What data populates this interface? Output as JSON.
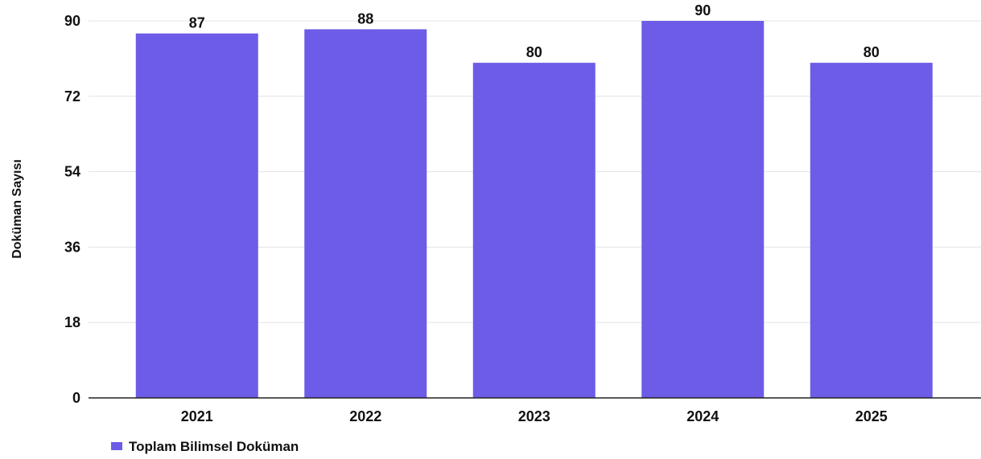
{
  "chart_data": {
    "type": "bar",
    "title": "",
    "xlabel": "",
    "ylabel": "Doküman Sayısı",
    "categories": [
      "2021",
      "2022",
      "2023",
      "2024",
      "2025"
    ],
    "series": [
      {
        "name": "Toplam Bilimsel Doküman",
        "values": [
          87,
          88,
          80,
          90,
          80
        ],
        "color": "#6c5ce7"
      }
    ],
    "ylim": [
      0,
      90
    ],
    "yticks": [
      0,
      18,
      36,
      54,
      72,
      90
    ],
    "grid": true,
    "legend_position": "bottom-left",
    "data_labels": true
  }
}
